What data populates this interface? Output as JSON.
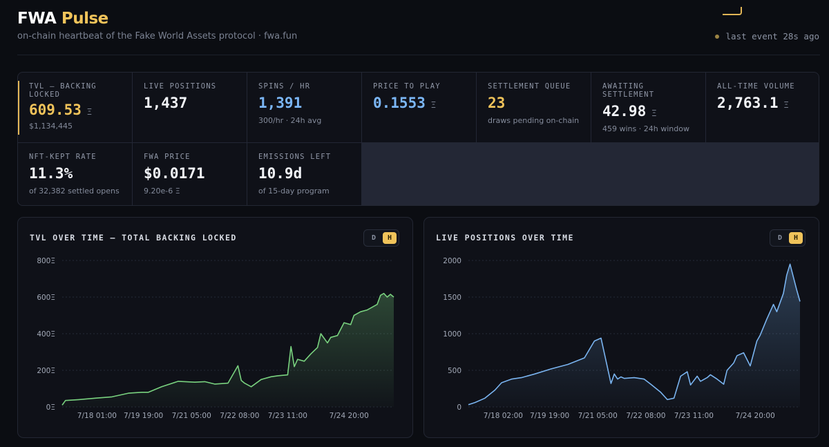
{
  "header": {
    "brand_main": "FWA",
    "brand_accent": "Pulse",
    "subtitle": "on-chain heartbeat of the Fake World Assets protocol · fwa.fun",
    "last_event": "last event 28s ago"
  },
  "colors": {
    "accent": "#f0c35a",
    "blue": "#7bb6f5",
    "green": "#79d27f",
    "line_blue": "#7ab4f0"
  },
  "stats": [
    {
      "label": "TVL — BACKING LOCKED",
      "value": "609.53",
      "unit": "Ξ",
      "sub": "$1,134,445"
    },
    {
      "label": "LIVE POSITIONS",
      "value": "1,437",
      "unit": "",
      "sub": ""
    },
    {
      "label": "SPINS / HR",
      "value": "1,391",
      "unit": "",
      "sub": "300/hr · 24h avg"
    },
    {
      "label": "PRICE TO PLAY",
      "value": "0.1553",
      "unit": "Ξ",
      "sub": ""
    },
    {
      "label": "SETTLEMENT QUEUE",
      "value": "23",
      "unit": "",
      "sub": "draws pending on-chain"
    },
    {
      "label": "AWAITING SETTLEMENT",
      "value": "42.98",
      "unit": "Ξ",
      "sub": "459 wins · 24h window"
    },
    {
      "label": "ALL-TIME VOLUME",
      "value": "2,763.1",
      "unit": "Ξ",
      "sub": ""
    },
    {
      "label": "NFT-KEPT RATE",
      "value": "11.3%",
      "unit": "",
      "sub": "of 32,382 settled opens"
    },
    {
      "label": "FWA PRICE",
      "value": "$0.0171",
      "unit": "",
      "sub": "9.20e-6 Ξ"
    },
    {
      "label": "EMISSIONS LEFT",
      "value": "10.9d",
      "unit": "",
      "sub": "of 15-day program"
    }
  ],
  "chart_data": [
    {
      "type": "area",
      "title": "TVL OVER TIME — TOTAL BACKING LOCKED",
      "toggle": {
        "options": [
          "D",
          "H"
        ],
        "selected": "H"
      },
      "y_ticks": [
        "0Ξ",
        "200Ξ",
        "400Ξ",
        "600Ξ",
        "800Ξ"
      ],
      "ylim": [
        0,
        800
      ],
      "x_ticks": [
        "7/18 01:00",
        "7/19 19:00",
        "7/21 05:00",
        "7/22 08:00",
        "7/23 11:00",
        "7/24 20:00"
      ],
      "grid": true,
      "series": [
        {
          "x": [
            0,
            0.01,
            0.05,
            0.1,
            0.15,
            0.2,
            0.24,
            0.26,
            0.3,
            0.35,
            0.4,
            0.43,
            0.46,
            0.5,
            0.53,
            0.54,
            0.55,
            0.57,
            0.6,
            0.63,
            0.65,
            0.68,
            0.69,
            0.7,
            0.71,
            0.73,
            0.75,
            0.77,
            0.78,
            0.8,
            0.81,
            0.83,
            0.85,
            0.87,
            0.88,
            0.9,
            0.92,
            0.93,
            0.95,
            0.96,
            0.97,
            0.98,
            0.99,
            1.0
          ],
          "y": [
            10,
            35,
            40,
            48,
            55,
            75,
            80,
            80,
            110,
            140,
            135,
            138,
            125,
            130,
            225,
            145,
            130,
            110,
            150,
            165,
            170,
            175,
            330,
            220,
            260,
            250,
            290,
            325,
            400,
            350,
            380,
            390,
            460,
            450,
            500,
            520,
            530,
            540,
            560,
            610,
            620,
            600,
            615,
            600
          ]
        }
      ]
    },
    {
      "type": "area",
      "title": "LIVE POSITIONS OVER TIME",
      "toggle": {
        "options": [
          "D",
          "H"
        ],
        "selected": "H"
      },
      "y_ticks": [
        "0",
        "500",
        "1000",
        "1500",
        "2000"
      ],
      "ylim": [
        0,
        2000
      ],
      "x_ticks": [
        "7/18 02:00",
        "7/19 19:00",
        "7/21 05:00",
        "7/22 08:00",
        "7/23 11:00",
        "7/24 20:00"
      ],
      "grid": true,
      "series": [
        {
          "x": [
            0,
            0.02,
            0.05,
            0.08,
            0.1,
            0.13,
            0.16,
            0.2,
            0.25,
            0.3,
            0.35,
            0.38,
            0.4,
            0.43,
            0.44,
            0.45,
            0.46,
            0.47,
            0.5,
            0.53,
            0.55,
            0.58,
            0.6,
            0.62,
            0.64,
            0.66,
            0.67,
            0.69,
            0.7,
            0.72,
            0.73,
            0.75,
            0.77,
            0.78,
            0.8,
            0.81,
            0.83,
            0.85,
            0.87,
            0.88,
            0.9,
            0.92,
            0.93,
            0.95,
            0.96,
            0.97,
            0.99,
            1.0
          ],
          "y": [
            30,
            60,
            120,
            230,
            330,
            380,
            400,
            450,
            520,
            580,
            670,
            900,
            940,
            320,
            450,
            380,
            410,
            390,
            400,
            380,
            310,
            200,
            100,
            120,
            420,
            480,
            300,
            420,
            350,
            400,
            440,
            380,
            310,
            500,
            600,
            700,
            740,
            560,
            900,
            980,
            1200,
            1400,
            1300,
            1550,
            1800,
            1950,
            1600,
            1440
          ]
        }
      ]
    }
  ]
}
